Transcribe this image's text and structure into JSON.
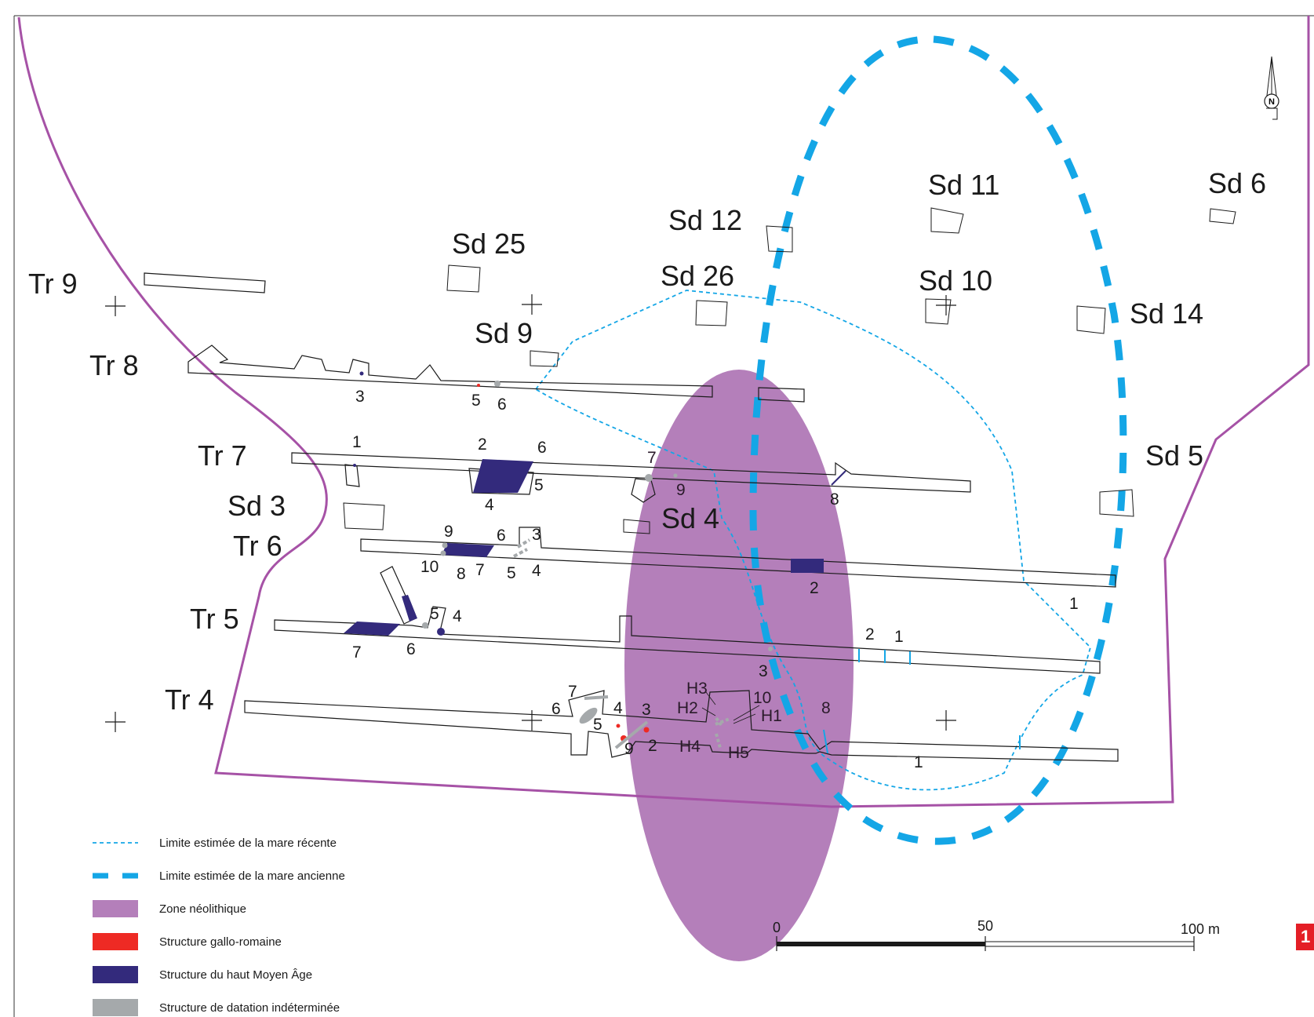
{
  "colors": {
    "site_boundary": "#a652a6",
    "neolithic_zone": "#b47fba",
    "gallo_roman": "#ee2a24",
    "high_middle_ages": "#332a7c",
    "undated": "#a5a9ab",
    "pond": "#14a6e6"
  },
  "labels": {
    "tr9": "Tr 9",
    "tr8": "Tr 8",
    "tr7": "Tr 7",
    "tr6": "Tr 6",
    "tr5": "Tr 5",
    "tr4": "Tr 4",
    "sd3": "Sd 3",
    "sd4": "Sd 4",
    "sd5": "Sd 5",
    "sd6": "Sd 6",
    "sd9": "Sd 9",
    "sd10": "Sd 10",
    "sd11": "Sd 11",
    "sd12": "Sd 12",
    "sd14": "Sd 14",
    "sd25": "Sd 25",
    "sd26": "Sd 26"
  },
  "structure_numbers": {
    "tr8": [
      "3",
      "5",
      "6"
    ],
    "tr7": [
      "1",
      "2",
      "6",
      "5",
      "4",
      "7",
      "9",
      "8"
    ],
    "tr6": [
      "9",
      "6",
      "3",
      "10",
      "8",
      "7",
      "5",
      "4",
      "2",
      "1"
    ],
    "tr5": [
      "5",
      "4",
      "7",
      "6",
      "2",
      "1",
      "3"
    ],
    "tr4": [
      "7",
      "6",
      "4",
      "5",
      "3",
      "9",
      "2",
      "H3",
      "10",
      "H2",
      "H1",
      "H4",
      "H5",
      "8",
      "1"
    ]
  },
  "north_arrow": "N",
  "scale_bar": {
    "label_0": "0",
    "label_50": "50",
    "label_100": "100 m"
  },
  "legend": [
    {
      "key": "recent_pond",
      "label": "Limite estimée de la mare récente"
    },
    {
      "key": "old_pond",
      "label": "Limite estimée de la mare ancienne"
    },
    {
      "key": "neolithic",
      "label": "Zone néolithique"
    },
    {
      "key": "gallo",
      "label": "Structure gallo-romaine"
    },
    {
      "key": "hma",
      "label": "Structure du haut Moyen Âge"
    },
    {
      "key": "undated",
      "label": "Structure de datation indéterminée"
    }
  ],
  "figure_number": "1"
}
